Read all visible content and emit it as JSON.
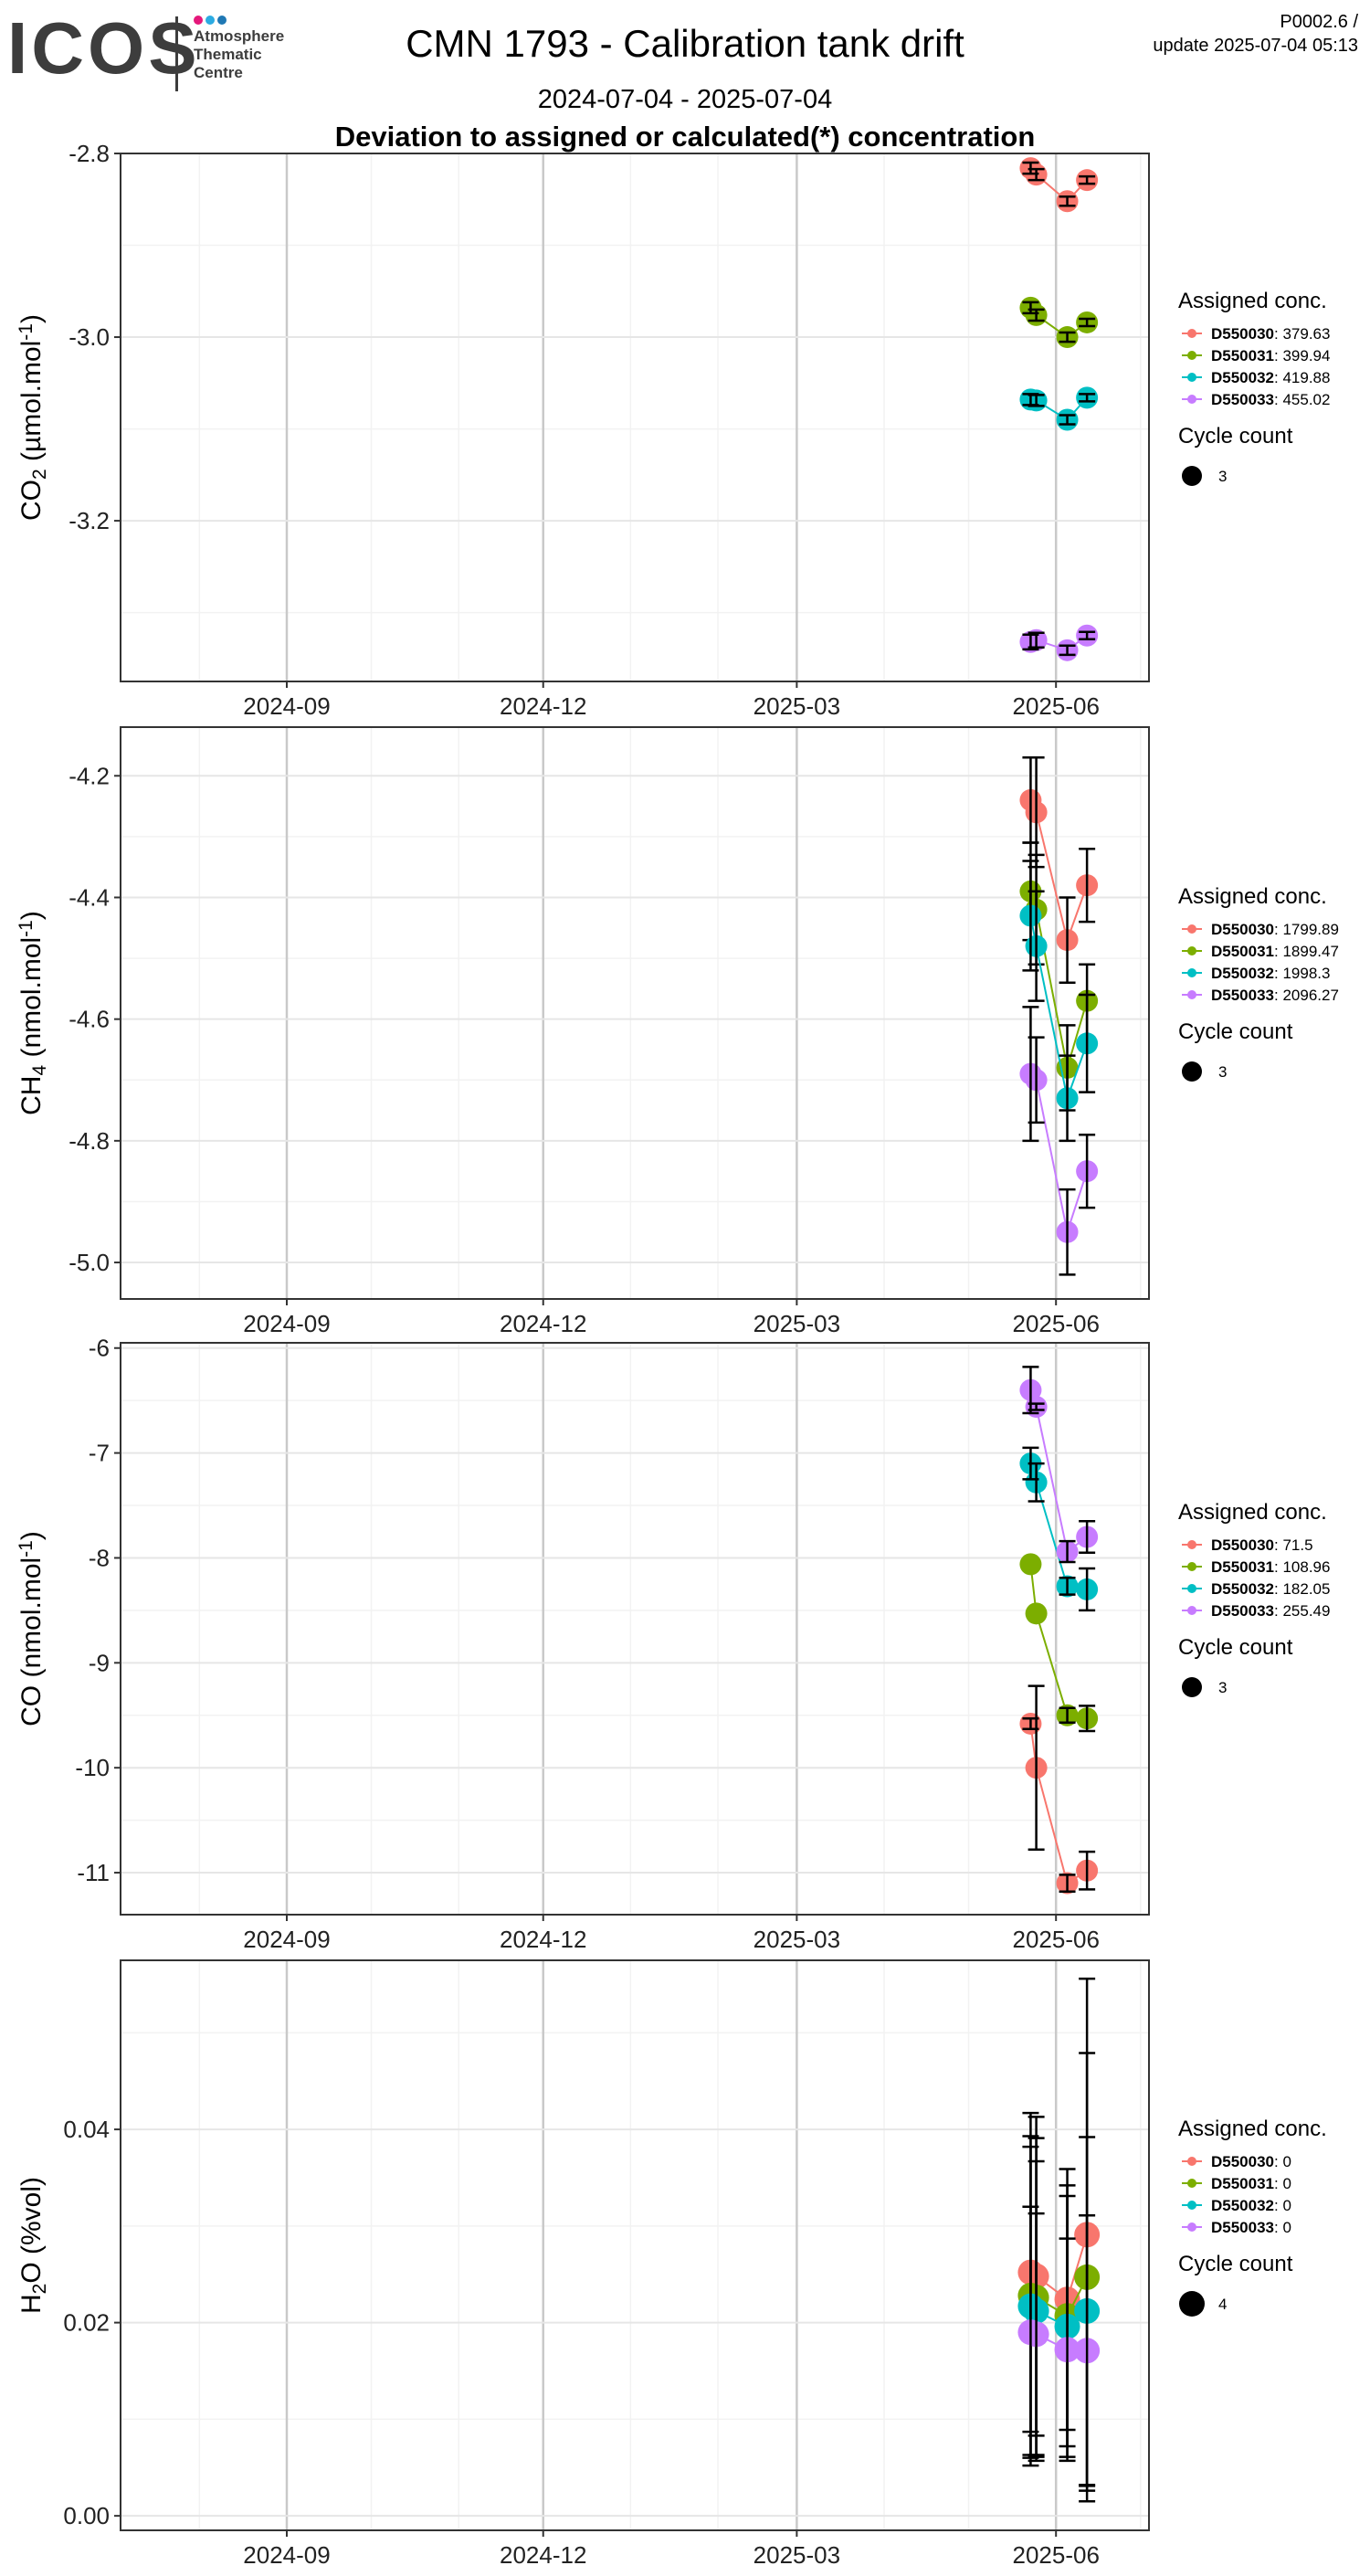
{
  "header": {
    "logo_text": "ICOS",
    "logo_sub": [
      "Atmosphere",
      "Thematic",
      "Centre"
    ],
    "logo_dot_colors": [
      "#e5187b",
      "#2cabe2",
      "#1f78b4"
    ],
    "title": "CMN 1793 - Calibration tank drift",
    "date_range": "2024-07-04 - 2025-07-04",
    "subtitle": "Deviation to assigned or calculated(*) concentration",
    "version": "P0002.6 /",
    "update": "update  2025-07-04 05:13"
  },
  "colors": {
    "D550030": "#F8766D",
    "D550031": "#7CAE00",
    "D550032": "#00BFC4",
    "D550033": "#C77CFF",
    "grid_major": "#e6e6e6",
    "grid_minor": "#f2f2f2",
    "grid_month": "#c9c9c9"
  },
  "x_axis": {
    "range": [
      "2024-07-04",
      "2025-07-04"
    ],
    "ticks": [
      {
        "date": "2024-09-01",
        "label": "2024-09"
      },
      {
        "date": "2024-12-01",
        "label": "2024-12"
      },
      {
        "date": "2025-03-01",
        "label": "2025-03"
      },
      {
        "date": "2025-06-01",
        "label": "2025-06"
      }
    ]
  },
  "legend_titles": {
    "assigned": "Assigned conc.",
    "cycle": "Cycle count"
  },
  "chart_data": [
    {
      "type": "line",
      "gas": "CO2",
      "ylabel_main": "CO",
      "ylabel_sub": "2",
      "ylabel_rest": " (µmol.mol",
      "ylabel_sup": "-1",
      "ylabel_end": ")",
      "ylim": [
        -3.375,
        -2.8
      ],
      "yticks": [
        -2.8,
        -3.0,
        -3.2
      ],
      "ytick_labels": [
        "-2.8",
        "-3.0",
        "-3.2"
      ],
      "cycle_count": "3",
      "x": [
        "2025-05-23",
        "2025-05-25",
        "2025-06-05",
        "2025-06-12"
      ],
      "series": [
        {
          "name": "D550030",
          "assigned": ": 379.63",
          "values": [
            -2.816,
            -2.823,
            -2.852,
            -2.829
          ],
          "err": [
            0.006,
            0.006,
            0.005,
            0.004
          ]
        },
        {
          "name": "D550031",
          "assigned": ": 399.94",
          "values": [
            -2.968,
            -2.976,
            -3.0,
            -2.984
          ],
          "err": [
            0.006,
            0.006,
            0.005,
            0.004
          ]
        },
        {
          "name": "D550032",
          "assigned": ": 419.88",
          "values": [
            -3.068,
            -3.069,
            -3.09,
            -3.066
          ],
          "err": [
            0.006,
            0.006,
            0.005,
            0.004
          ]
        },
        {
          "name": "D550033",
          "assigned": ": 455.02",
          "values": [
            -3.332,
            -3.33,
            -3.341,
            -3.325
          ],
          "err": [
            0.008,
            0.008,
            0.005,
            0.004
          ]
        }
      ]
    },
    {
      "type": "line",
      "gas": "CH4",
      "ylabel_main": "CH",
      "ylabel_sub": "4",
      "ylabel_rest": " (nmol.mol",
      "ylabel_sup": "-1",
      "ylabel_end": ")",
      "ylim": [
        -5.06,
        -4.12
      ],
      "yticks": [
        -4.2,
        -4.4,
        -4.6,
        -4.8,
        -5.0
      ],
      "ytick_labels": [
        "-4.2",
        "-4.4",
        "-4.6",
        "-4.8",
        "-5.0"
      ],
      "cycle_count": "3",
      "x": [
        "2025-05-23",
        "2025-05-25",
        "2025-06-05",
        "2025-06-12"
      ],
      "series": [
        {
          "name": "D550030",
          "assigned": ": 1799.89",
          "values": [
            -4.24,
            -4.26,
            -4.47,
            -4.38
          ],
          "err": [
            0.07,
            0.09,
            0.07,
            0.06
          ]
        },
        {
          "name": "D550031",
          "assigned": ": 1899.47",
          "values": [
            -4.39,
            -4.42,
            -4.68,
            -4.57
          ],
          "err": [
            0.08,
            0.09,
            0.07,
            0.06
          ]
        },
        {
          "name": "D550032",
          "assigned": ": 1998.3",
          "values": [
            -4.43,
            -4.48,
            -4.73,
            -4.64
          ],
          "err": [
            0.09,
            0.09,
            0.07,
            0.08
          ]
        },
        {
          "name": "D550033",
          "assigned": ": 2096.27",
          "values": [
            -4.69,
            -4.7,
            -4.95,
            -4.85
          ],
          "err": [
            0.11,
            0.07,
            0.07,
            0.06
          ]
        }
      ]
    },
    {
      "type": "line",
      "gas": "CO",
      "ylabel_main": "CO (nmol.mol",
      "ylabel_sub": "",
      "ylabel_rest": "",
      "ylabel_sup": "-1",
      "ylabel_end": ")",
      "ylim": [
        -11.4,
        -5.95
      ],
      "yticks": [
        -6,
        -7,
        -8,
        -9,
        -10,
        -11
      ],
      "ytick_labels": [
        "-6",
        "-7",
        "-8",
        "-9",
        "-10",
        "-11"
      ],
      "cycle_count": "3",
      "x": [
        "2025-05-23",
        "2025-05-25",
        "2025-06-05",
        "2025-06-12"
      ],
      "series": [
        {
          "name": "D550030",
          "assigned": ": 71.5",
          "values": [
            -9.58,
            -10.0,
            -11.1,
            -10.98
          ],
          "err": [
            0.05,
            0.78,
            0.08,
            0.18
          ]
        },
        {
          "name": "D550031",
          "assigned": ": 108.96",
          "values": [
            -8.06,
            -8.53,
            -9.5,
            -9.53
          ],
          "err": [
            0.0,
            0.0,
            0.07,
            0.12
          ]
        },
        {
          "name": "D550032",
          "assigned": ": 182.05",
          "values": [
            -7.1,
            -7.28,
            -8.27,
            -8.3
          ],
          "err": [
            0.15,
            0.18,
            0.08,
            0.2
          ]
        },
        {
          "name": "D550033",
          "assigned": ": 255.49",
          "values": [
            -6.4,
            -6.56,
            -7.94,
            -7.8
          ],
          "err": [
            0.22,
            0.03,
            0.1,
            0.15
          ]
        }
      ]
    },
    {
      "type": "line",
      "gas": "H2O",
      "ylabel_main": "H",
      "ylabel_sub": "2",
      "ylabel_rest": "O (%vol)",
      "ylabel_sup": "",
      "ylabel_end": "",
      "ylim": [
        -0.0015,
        0.0575
      ],
      "yticks": [
        0.0,
        0.02,
        0.04
      ],
      "ytick_labels": [
        "0.00",
        "0.02",
        "0.04"
      ],
      "cycle_count": "4",
      "x": [
        "2025-05-23",
        "2025-05-25",
        "2025-06-05",
        "2025-06-12"
      ],
      "series": [
        {
          "name": "D550030",
          "assigned": ": 0",
          "values": [
            0.0252,
            0.0248,
            0.0224,
            0.0291
          ],
          "err": [
            0.0165,
            0.0165,
            0.0135,
            0.0265
          ]
        },
        {
          "name": "D550031",
          "assigned": ": 0",
          "values": [
            0.0228,
            0.0226,
            0.0207,
            0.0247
          ],
          "err": [
            0.0165,
            0.0165,
            0.0135,
            0.0232
          ]
        },
        {
          "name": "D550032",
          "assigned": ": 0",
          "values": [
            0.0217,
            0.0212,
            0.0196,
            0.0212
          ],
          "err": [
            0.0165,
            0.0155,
            0.0135,
            0.018
          ]
        },
        {
          "name": "D550033",
          "assigned": ": 0",
          "values": [
            0.019,
            0.0188,
            0.0172,
            0.0171
          ],
          "err": [
            0.013,
            0.0125,
            0.0115,
            0.014
          ]
        }
      ]
    }
  ]
}
